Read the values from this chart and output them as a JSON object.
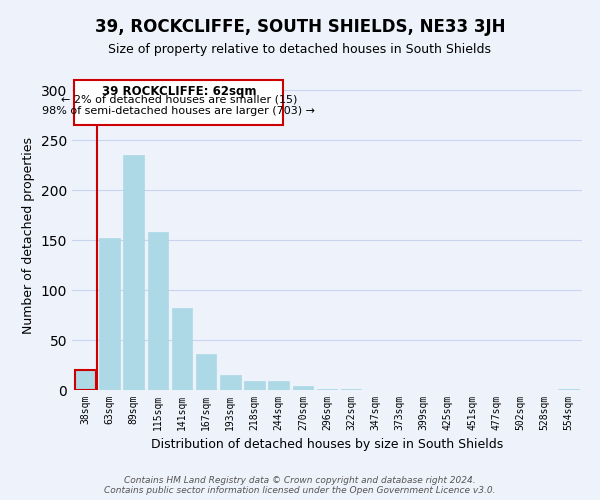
{
  "title": "39, ROCKCLIFFE, SOUTH SHIELDS, NE33 3JH",
  "subtitle": "Size of property relative to detached houses in South Shields",
  "xlabel": "Distribution of detached houses by size in South Shields",
  "ylabel": "Number of detached properties",
  "bar_labels": [
    "38sqm",
    "63sqm",
    "89sqm",
    "115sqm",
    "141sqm",
    "167sqm",
    "193sqm",
    "218sqm",
    "244sqm",
    "270sqm",
    "296sqm",
    "322sqm",
    "347sqm",
    "373sqm",
    "399sqm",
    "425sqm",
    "451sqm",
    "477sqm",
    "502sqm",
    "528sqm",
    "554sqm"
  ],
  "bar_values": [
    20,
    152,
    235,
    158,
    82,
    36,
    15,
    9,
    9,
    4,
    1,
    1,
    0,
    0,
    0,
    0,
    0,
    0,
    0,
    0,
    1
  ],
  "bar_color": "#add8e6",
  "highlight_color": "#cc0000",
  "ylim": [
    0,
    310
  ],
  "yticks": [
    0,
    50,
    100,
    150,
    200,
    250,
    300
  ],
  "annotation_title": "39 ROCKCLIFFE: 62sqm",
  "annotation_line1": "← 2% of detached houses are smaller (15)",
  "annotation_line2": "98% of semi-detached houses are larger (703) →",
  "footnote": "Contains HM Land Registry data © Crown copyright and database right 2024.\nContains public sector information licensed under the Open Government Licence v3.0.",
  "bg_color": "#eef2fb",
  "grid_color": "#c8d4f0",
  "annotation_box_color": "#ffffff",
  "annotation_box_edge": "#cc0000",
  "title_fontsize": 12,
  "subtitle_fontsize": 9,
  "tick_fontsize": 7,
  "ylabel_fontsize": 9,
  "xlabel_fontsize": 9,
  "footnote_fontsize": 6.5
}
